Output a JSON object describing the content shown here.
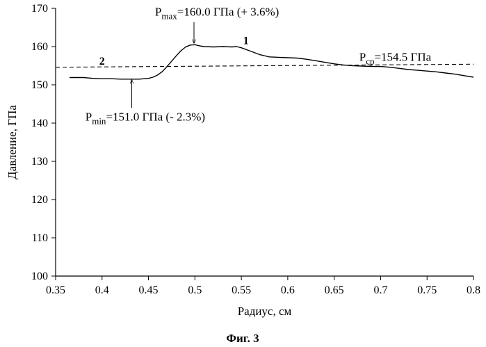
{
  "chart_data": {
    "type": "line",
    "xlabel": "Радиус, см",
    "ylabel": "Давление, ГПа",
    "xlim": [
      0.35,
      0.8
    ],
    "ylim": [
      100,
      170
    ],
    "x_ticks": [
      "0.35",
      "0.4",
      "0.45",
      "0.5",
      "0.55",
      "0.6",
      "0.65",
      "0.7",
      "0.75",
      "0.8"
    ],
    "y_ticks": [
      "100",
      "110",
      "120",
      "130",
      "140",
      "150",
      "160",
      "170"
    ],
    "grid": false,
    "legend": "none",
    "series": [
      {
        "name": "1",
        "style": "solid",
        "color": "#000000",
        "x": [
          0.365,
          0.38,
          0.39,
          0.4,
          0.41,
          0.42,
          0.43,
          0.44,
          0.45,
          0.455,
          0.46,
          0.465,
          0.47,
          0.475,
          0.48,
          0.485,
          0.49,
          0.495,
          0.5,
          0.505,
          0.51,
          0.52,
          0.53,
          0.54,
          0.545,
          0.55,
          0.56,
          0.57,
          0.58,
          0.59,
          0.6,
          0.61,
          0.62,
          0.63,
          0.64,
          0.65,
          0.66,
          0.67,
          0.68,
          0.69,
          0.7,
          0.71,
          0.72,
          0.73,
          0.74,
          0.75,
          0.76,
          0.77,
          0.78,
          0.79,
          0.8
        ],
        "y": [
          151.9,
          151.9,
          151.7,
          151.6,
          151.6,
          151.5,
          151.5,
          151.5,
          151.7,
          152.0,
          152.6,
          153.5,
          154.8,
          156.2,
          157.6,
          158.9,
          159.9,
          160.4,
          160.5,
          160.2,
          160.0,
          159.9,
          160.0,
          159.9,
          160.0,
          159.7,
          158.8,
          157.9,
          157.3,
          157.2,
          157.1,
          157.0,
          156.7,
          156.3,
          155.9,
          155.5,
          155.2,
          155.0,
          154.9,
          154.8,
          154.8,
          154.6,
          154.3,
          154.0,
          153.8,
          153.6,
          153.4,
          153.1,
          152.8,
          152.4,
          152.0
        ]
      },
      {
        "name": "2",
        "style": "dashed",
        "color": "#000000",
        "x": [
          0.35,
          0.8
        ],
        "y": [
          154.6,
          155.4
        ]
      }
    ],
    "series_labels": [
      {
        "text": "1",
        "x": 0.555,
        "y": 160.6
      },
      {
        "text": "2",
        "x": 0.4,
        "y": 155.3
      }
    ],
    "annotations": [
      {
        "parts": [
          {
            "t": "P",
            "sub": false
          },
          {
            "t": "max",
            "sub": true
          },
          {
            "t": "=160.0 ГПа (+ 3.6%)",
            "sub": false
          }
        ],
        "text_x": 0.457,
        "text_y": 168.1,
        "arrow_from": [
          0.499,
          166.4
        ],
        "arrow_to": [
          0.499,
          160.9
        ]
      },
      {
        "parts": [
          {
            "t": "P",
            "sub": false
          },
          {
            "t": "min",
            "sub": true
          },
          {
            "t": "=151.0 ГПа (- 2.3%)",
            "sub": false
          }
        ],
        "text_x": 0.382,
        "text_y": 140.6,
        "arrow_from": [
          0.432,
          144.0
        ],
        "arrow_to": [
          0.432,
          151.3
        ]
      },
      {
        "parts": [
          {
            "t": "P",
            "sub": false
          },
          {
            "t": "ср",
            "sub": true
          },
          {
            "t": "=154.5 ГПа",
            "sub": false
          }
        ],
        "text_x": 0.677,
        "text_y": 156.3,
        "arrow_from": null,
        "arrow_to": null
      }
    ]
  },
  "caption": "Фиг. 3"
}
